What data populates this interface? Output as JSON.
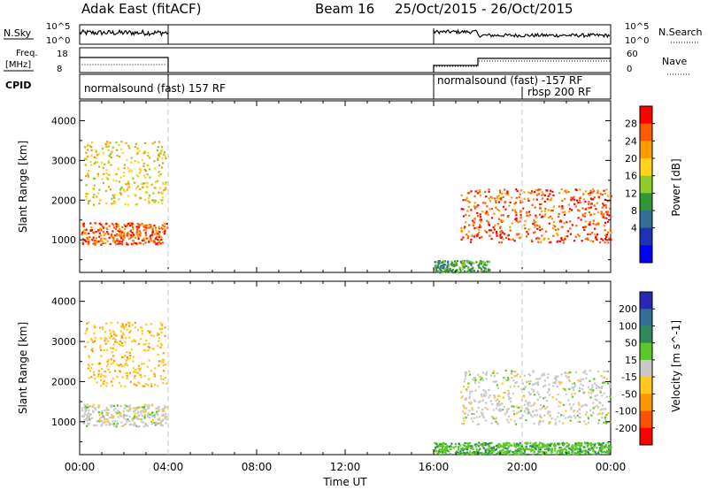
{
  "header": {
    "title": "Adak East (fitACF)",
    "beam": "Beam 16",
    "date_range": "25/Oct/2015 - 26/Oct/2015"
  },
  "panels": {
    "nsky_label": "N.Sky",
    "nsky_ticks": [
      "10^5",
      "10^0"
    ],
    "nsearch_label": "N.Search",
    "nsearch_ticks": [
      "10^5",
      "10^0"
    ],
    "freq_label": "Freq.",
    "freq_unit": "[MHz]",
    "freq_ticks": [
      "18",
      "8"
    ],
    "nave_label": "Nave",
    "nave_ticks": [
      "60",
      "0"
    ],
    "cpid_label": "CPID",
    "cpid_entries": [
      {
        "text": "normalsound (fast) 157 RF"
      },
      {
        "text": "normalsound (fast) -157 RF"
      },
      {
        "text": "rbsp 200 RF"
      }
    ]
  },
  "power_colorbar": {
    "label": "Power [dB]",
    "ticks": [
      "28",
      "24",
      "20",
      "16",
      "12",
      "8",
      "4"
    ],
    "colors": [
      "#ff0000",
      "#ff5a00",
      "#ff9a00",
      "#ffd21e",
      "#8ccd28",
      "#329632",
      "#326e96",
      "#1e32b4",
      "#0000ff"
    ]
  },
  "velocity_colorbar": {
    "label": "Velocity [m s^-1]",
    "ticks": [
      "200",
      "100",
      "50",
      "15",
      "-15",
      "-50",
      "-100",
      "-200"
    ],
    "colors": [
      "#2828b4",
      "#326e96",
      "#2e8b57",
      "#5ac828",
      "#c8c8c8",
      "#ffc81e",
      "#ff9600",
      "#ff5000",
      "#ff0000"
    ]
  },
  "chart_data": {
    "type": "heatmap",
    "xlabel": "Time UT",
    "ylabel": "Slant Range [km]",
    "x_ticks": [
      "00:00",
      "04:00",
      "08:00",
      "12:00",
      "16:00",
      "20:00",
      "00:00"
    ],
    "x_tick_hours": [
      0,
      4,
      8,
      12,
      16,
      20,
      24
    ],
    "y_ticks": [
      1000,
      2000,
      3000,
      4000
    ],
    "ylim": [
      180,
      4500
    ],
    "xlim_hours": [
      0,
      24
    ],
    "data_windows_hours": [
      [
        0,
        4
      ],
      [
        16,
        24
      ]
    ],
    "cpid_change_hours": [
      4,
      16,
      20
    ],
    "power_scatter": [
      {
        "name": "main_band",
        "hours": [
          0.05,
          3.95
        ],
        "range_km": [
          900,
          1450
        ],
        "dominant_db": 26
      },
      {
        "name": "upper_band",
        "hours": [
          0.2,
          3.9
        ],
        "range_km": [
          1900,
          3500
        ],
        "dominant_db": 18
      },
      {
        "name": "evening_band",
        "hours": [
          17.2,
          24
        ],
        "range_km": [
          950,
          2300
        ],
        "dominant_db": 26
      },
      {
        "name": "near_range",
        "hours": [
          16.0,
          18.5
        ],
        "range_km": [
          200,
          500
        ],
        "dominant_db": 10
      }
    ],
    "velocity_scatter": [
      {
        "name": "main_band",
        "hours": [
          0.05,
          3.95
        ],
        "range_km": [
          900,
          1450
        ],
        "dominant_ms": 0
      },
      {
        "name": "upper_band",
        "hours": [
          0.2,
          3.9
        ],
        "range_km": [
          1900,
          3500
        ],
        "dominant_ms": -40
      },
      {
        "name": "evening_band",
        "hours": [
          17.2,
          24
        ],
        "range_km": [
          950,
          2300
        ],
        "dominant_ms": 0
      },
      {
        "name": "near_range",
        "hours": [
          16.0,
          24
        ],
        "range_km": [
          200,
          500
        ],
        "dominant_ms": 40
      }
    ]
  }
}
